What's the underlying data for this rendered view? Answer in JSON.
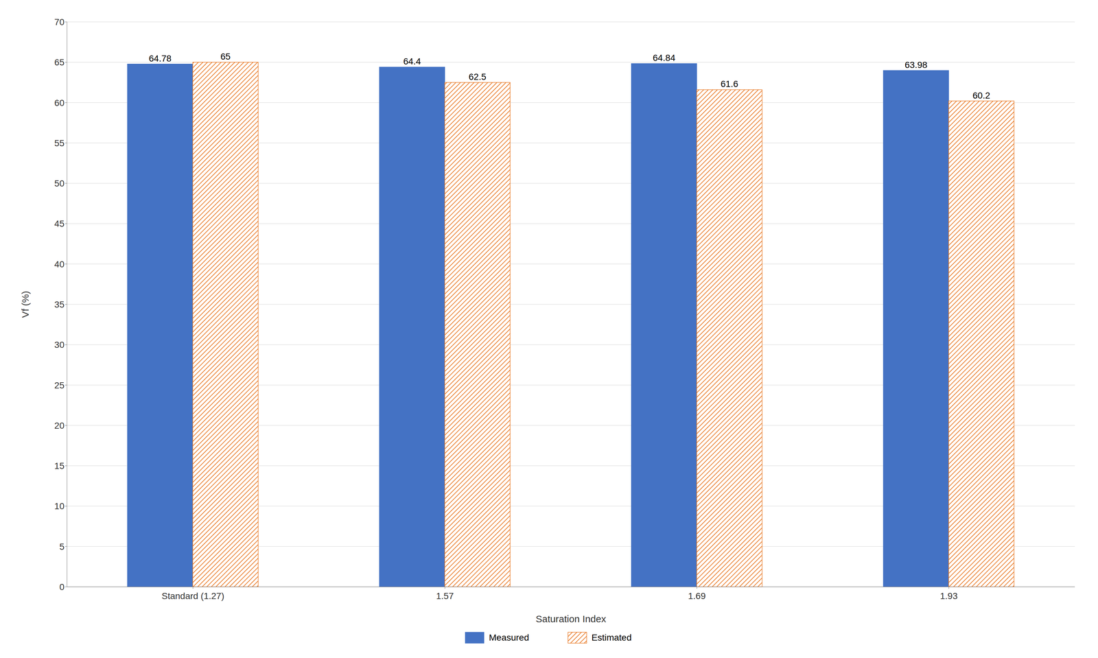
{
  "chart_data": {
    "type": "bar",
    "categories": [
      "Standard (1.27)",
      "1.57",
      "1.69",
      "1.93"
    ],
    "series": [
      {
        "name": "Measured",
        "color": "#4472C4",
        "values": [
          64.78,
          64.4,
          64.84,
          63.98
        ]
      },
      {
        "name": "Estimated",
        "color": "#E87722",
        "values": [
          65,
          62.5,
          61.6,
          60.2
        ]
      }
    ],
    "xlabel": "Saturation Index",
    "ylabel": "Vf (%)",
    "ylim": [
      0,
      70
    ],
    "yticks": [
      0,
      5,
      10,
      15,
      20,
      25,
      30,
      35,
      40,
      45,
      50,
      55,
      60,
      65,
      70
    ],
    "grid": true,
    "legend": "bottom",
    "data_labels": true
  }
}
